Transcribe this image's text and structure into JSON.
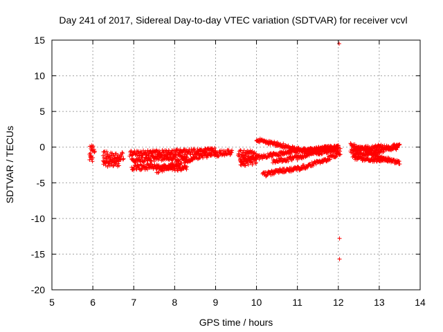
{
  "chart_data": {
    "type": "scatter",
    "title": "Day 241 of 2017, Sidereal Day-to-day VTEC variation (SDTVAR) for receiver vcvl",
    "xlabel": "GPS time / hours",
    "ylabel": "SDTVAR / TECUs",
    "xlim": [
      5,
      14
    ],
    "ylim": [
      -20,
      15
    ],
    "xticks": [
      5,
      6,
      7,
      8,
      9,
      10,
      11,
      12,
      13,
      14
    ],
    "yticks": [
      -20,
      -15,
      -10,
      -5,
      0,
      5,
      10,
      15
    ],
    "grid": true,
    "marker": "plus",
    "colors": {
      "points": "#ff0000",
      "grid": "#a0a0a0",
      "frame": "#000000"
    },
    "segments": [
      {
        "x": [
          5.92,
          6.05
        ],
        "y": [
          -0.2,
          -0.2
        ],
        "spread": 0.8
      },
      {
        "x": [
          5.92,
          6.0
        ],
        "y": [
          -1.6,
          -1.6
        ],
        "spread": 0.5
      },
      {
        "x": [
          6.25,
          6.75
        ],
        "y": [
          -1.2,
          -1.2
        ],
        "spread": 0.6
      },
      {
        "x": [
          6.25,
          6.65
        ],
        "y": [
          -2.3,
          -2.3
        ],
        "spread": 0.5
      },
      {
        "x": [
          6.9,
          7.8,
          8.6,
          9.0
        ],
        "y": [
          -0.9,
          -0.8,
          -0.6,
          -0.5
        ],
        "spread": 0.4
      },
      {
        "x": [
          6.95,
          7.5,
          8.3
        ],
        "y": [
          -2.0,
          -1.6,
          -1.4
        ],
        "spread": 0.4
      },
      {
        "x": [
          6.95,
          7.4,
          8.3
        ],
        "y": [
          -2.9,
          -2.7,
          -3.0
        ],
        "spread": 0.4
      },
      {
        "x": [
          7.55,
          8.1,
          8.6,
          9.4
        ],
        "y": [
          -3.3,
          -2.2,
          -1.2,
          -0.7
        ],
        "spread": 0.4
      },
      {
        "x": [
          9.55,
          10.0
        ],
        "y": [
          -0.9,
          -1.0
        ],
        "spread": 0.5
      },
      {
        "x": [
          9.6,
          10.0
        ],
        "y": [
          -2.2,
          -2.0
        ],
        "spread": 0.5
      },
      {
        "x": [
          10.0,
          10.5,
          11.0,
          11.5,
          12.0
        ],
        "y": [
          1.0,
          0.4,
          -0.3,
          -0.8,
          -0.3
        ],
        "spread": 0.3
      },
      {
        "x": [
          9.6,
          10.2,
          10.8,
          11.4,
          12.0
        ],
        "y": [
          -1.8,
          -1.3,
          -0.7,
          -0.3,
          0.0
        ],
        "spread": 0.3
      },
      {
        "x": [
          10.15,
          10.6,
          11.1,
          11.6,
          12.05
        ],
        "y": [
          -3.9,
          -3.3,
          -2.9,
          -2.0,
          -0.8
        ],
        "spread": 0.3
      },
      {
        "x": [
          10.4,
          11.0,
          11.6,
          12.0
        ],
        "y": [
          -2.0,
          -1.5,
          -0.3,
          0.0
        ],
        "spread": 0.3
      },
      {
        "x": [
          12.3,
          12.6,
          13.0,
          13.5
        ],
        "y": [
          0.3,
          -0.1,
          -1.5,
          -2.2
        ],
        "spread": 0.3
      },
      {
        "x": [
          12.35,
          12.7,
          13.1,
          13.5
        ],
        "y": [
          -1.1,
          -0.9,
          -0.4,
          0.4
        ],
        "spread": 0.3
      },
      {
        "x": [
          12.3,
          12.6,
          13.0,
          13.45
        ],
        "y": [
          -0.6,
          -0.2,
          0.1,
          -0.3
        ],
        "spread": 0.3
      },
      {
        "x": [
          12.4,
          12.8,
          13.3
        ],
        "y": [
          -1.5,
          -1.8,
          -1.7
        ],
        "spread": 0.25
      }
    ],
    "outliers": [
      {
        "x": 12.02,
        "y": 14.5
      },
      {
        "x": 12.03,
        "y": -12.8
      },
      {
        "x": 12.03,
        "y": -15.7
      },
      {
        "x": 12.05,
        "y": -0.2
      }
    ]
  }
}
